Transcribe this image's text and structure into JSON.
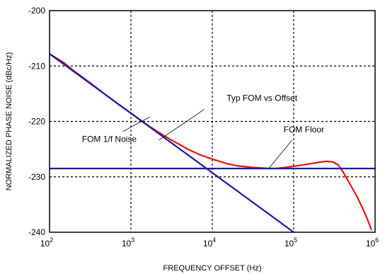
{
  "chart_data": {
    "type": "line",
    "title": "",
    "xlabel": "FREQUENCY OFFSET (Hz)",
    "ylabel": "NORMALIZED PHASE NOISE (dBc/Hz)",
    "x_scale": "log",
    "xlim": [
      100,
      1000000
    ],
    "ylim": [
      -240,
      -200
    ],
    "x_ticks": [
      {
        "value": 100,
        "base": "10",
        "exp": "2"
      },
      {
        "value": 1000,
        "base": "10",
        "exp": "3"
      },
      {
        "value": 10000,
        "base": "10",
        "exp": "4"
      },
      {
        "value": 100000,
        "base": "10",
        "exp": "5"
      },
      {
        "value": 1000000,
        "base": "10",
        "exp": "6"
      }
    ],
    "y_ticks": [
      {
        "value": -200,
        "label": "-200"
      },
      {
        "value": -210,
        "label": "-210"
      },
      {
        "value": -220,
        "label": "-220"
      },
      {
        "value": -230,
        "label": "-230"
      },
      {
        "value": -240,
        "label": "-240"
      }
    ],
    "grid": true,
    "series": [
      {
        "key": "typ",
        "color": "#e8120c",
        "x": [
          100,
          150,
          200,
          300,
          500,
          700,
          1000,
          1500,
          2000,
          3000,
          5000,
          7000,
          10000,
          15000,
          20000,
          30000,
          40000,
          50000,
          60000,
          70000,
          100000,
          150000,
          200000,
          250000,
          300000,
          350000,
          400000,
          500000,
          600000,
          700000,
          800000,
          900000
        ],
        "y": [
          -207.8,
          -209.4,
          -210.9,
          -212.8,
          -215.3,
          -216.9,
          -218.5,
          -220.4,
          -221.6,
          -223.2,
          -225.0,
          -226.0,
          -226.8,
          -227.6,
          -228.0,
          -228.3,
          -228.4,
          -228.5,
          -228.5,
          -228.4,
          -228.1,
          -227.7,
          -227.4,
          -227.2,
          -227.3,
          -227.8,
          -229.0,
          -231.5,
          -233.6,
          -235.6,
          -237.6,
          -239.5
        ]
      },
      {
        "key": "flicker",
        "color": "#1a1aa8",
        "x": [
          100,
          100000
        ],
        "y": [
          -207.8,
          -240
        ]
      },
      {
        "key": "floor",
        "color": "#1a1aa8",
        "x": [
          100,
          1000000
        ],
        "y": [
          -228.5,
          -228.5
        ]
      }
    ],
    "annotations": [
      {
        "text": "Typ FOM vs Offset",
        "x": 15000,
        "y": -216.3,
        "pointer_from": [
          8000,
          -217.8
        ],
        "pointer_to": [
          2200,
          -223.4
        ]
      },
      {
        "text": "FOM 1/f Noise",
        "x": 250,
        "y": -223.7,
        "pointer_from": [
          800,
          -221.8
        ],
        "pointer_to": [
          1700,
          -219.2
        ]
      },
      {
        "text": "FOM Floor",
        "x": 75000,
        "y": -222.0,
        "pointer_from": [
          95000,
          -223.4
        ],
        "pointer_to": [
          50000,
          -228.4
        ]
      }
    ]
  }
}
